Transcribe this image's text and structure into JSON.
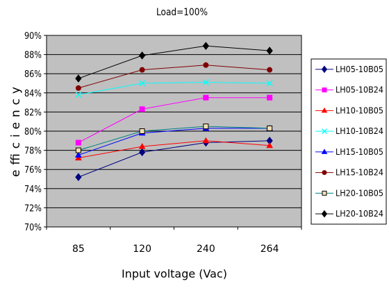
{
  "chart_data": {
    "type": "line",
    "title": "Load=100%",
    "xlabel": "Input voltage (Vac)",
    "ylabel": "efficiency",
    "categories": [
      "85",
      "120",
      "240",
      "264"
    ],
    "ylim": [
      70,
      90
    ],
    "yticks": [
      "70%",
      "72%",
      "74%",
      "76%",
      "78%",
      "80%",
      "82%",
      "84%",
      "86%",
      "88%",
      "90%"
    ],
    "grid": true,
    "plot_background": "#c0c0c0",
    "legend_position": "right",
    "series": [
      {
        "name": "LH05-10B05",
        "color": "#000080",
        "marker": "diamond",
        "values": [
          75.2,
          77.8,
          78.8,
          79.0
        ]
      },
      {
        "name": "LH05-10B24",
        "color": "#ff00ff",
        "marker": "square",
        "values": [
          78.8,
          82.3,
          83.5,
          83.5
        ]
      },
      {
        "name": "LH10-10B05",
        "color": "#ff0000",
        "marker": "triangle",
        "values": [
          77.2,
          78.4,
          79.0,
          78.5
        ]
      },
      {
        "name": "LH10-10B24",
        "color": "#00ffff",
        "marker": "x",
        "values": [
          83.8,
          85.0,
          85.1,
          85.0
        ]
      },
      {
        "name": "LH15-10B05",
        "color": "#0000ff",
        "marker": "triangle",
        "values": [
          77.5,
          79.8,
          80.3,
          80.3
        ]
      },
      {
        "name": "LH15-10B24",
        "color": "#800000",
        "marker": "circle",
        "values": [
          84.5,
          86.4,
          86.9,
          86.4
        ]
      },
      {
        "name": "LH20-10B05",
        "color": "#008080",
        "marker": "square-open",
        "values": [
          78.0,
          80.0,
          80.5,
          80.3
        ]
      },
      {
        "name": "LH20-10B24",
        "color": "#000000",
        "marker": "diamond",
        "values": [
          85.5,
          87.9,
          88.9,
          88.4
        ]
      }
    ]
  }
}
